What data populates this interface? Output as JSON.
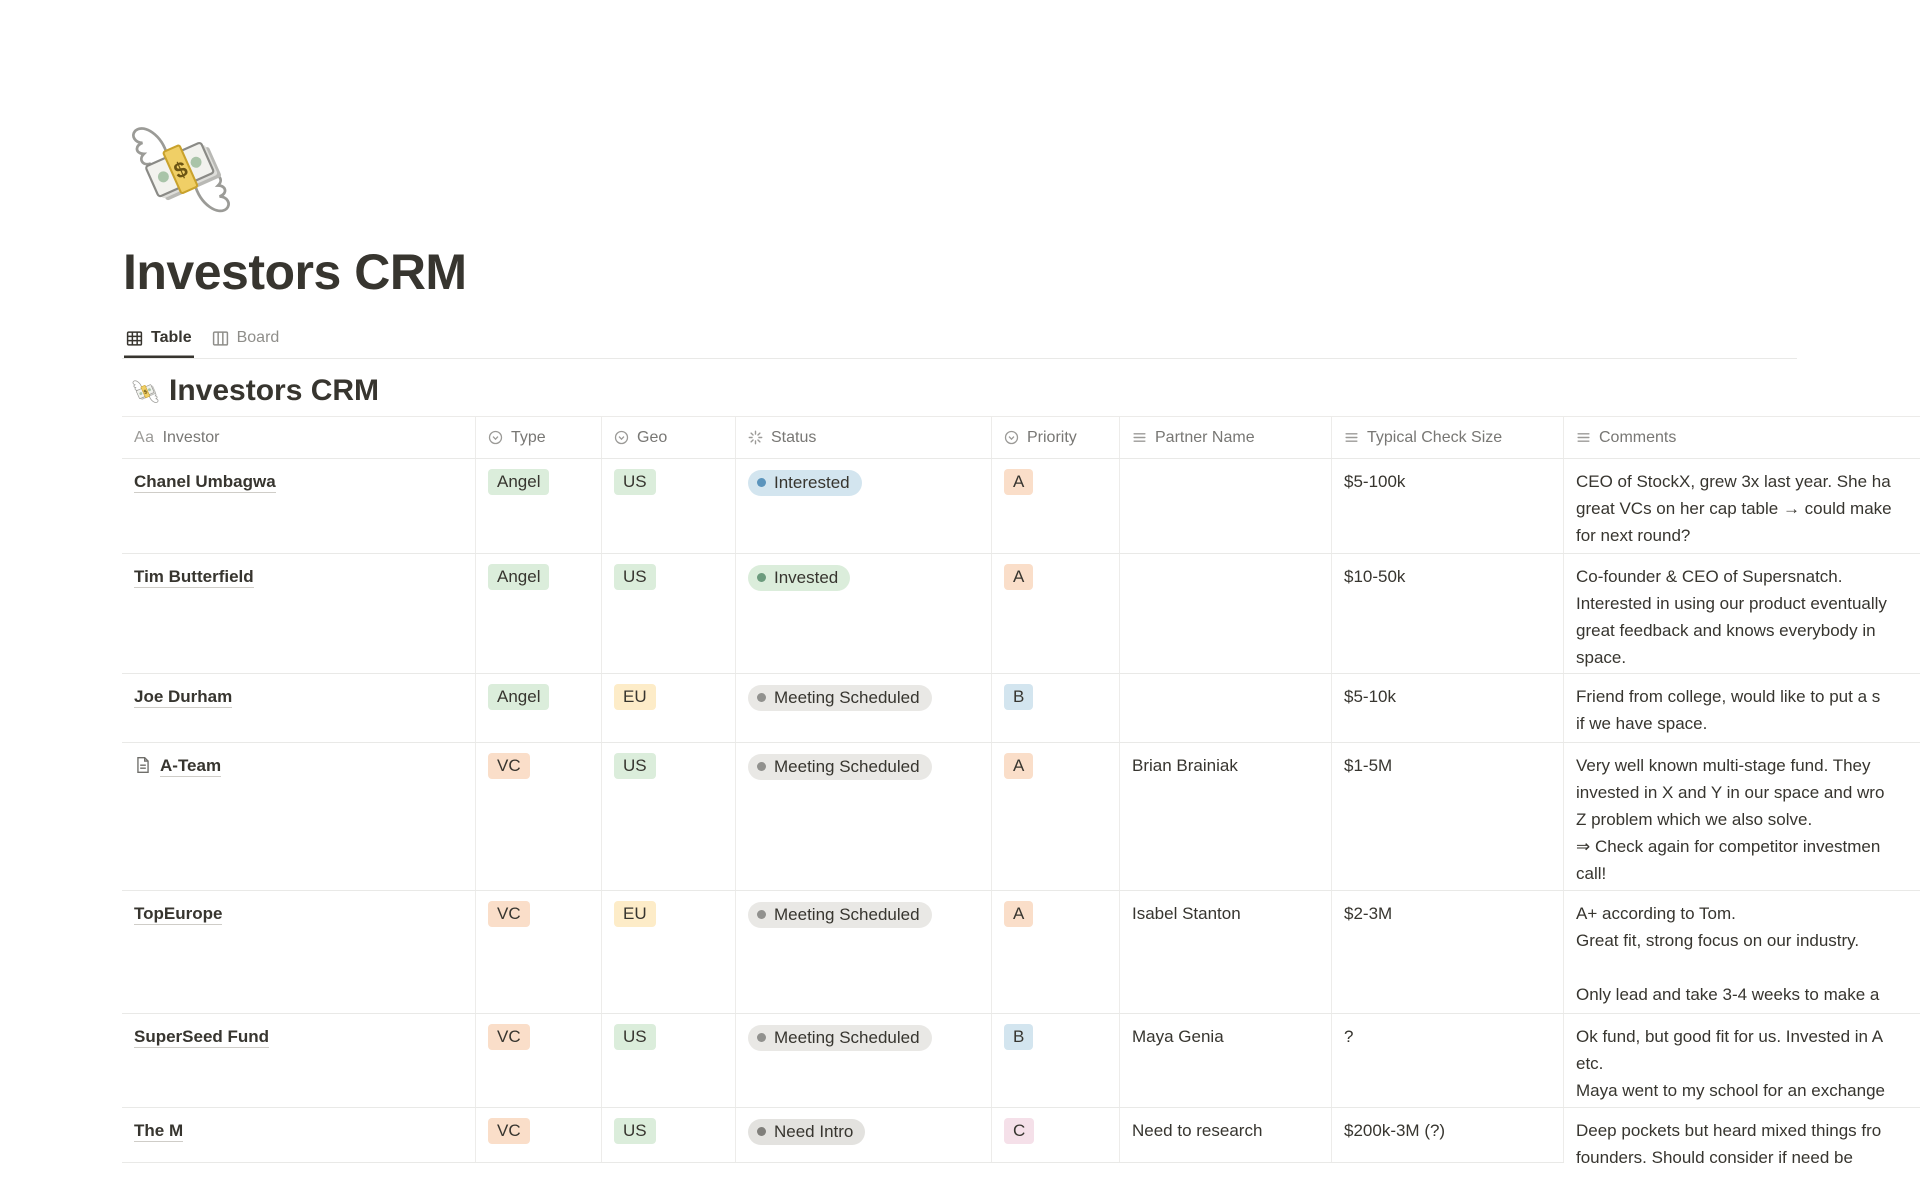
{
  "page": {
    "icon": "money-with-wings-emoji",
    "title": "Investors CRM"
  },
  "tabs": {
    "table_label": "Table",
    "board_label": "Board"
  },
  "view": {
    "icon": "money-with-wings-emoji",
    "heading": "Investors CRM"
  },
  "columns": {
    "investor_icon": "Aa",
    "investor": "Investor",
    "type": "Type",
    "geo": "Geo",
    "status": "Status",
    "priority": "Priority",
    "partner": "Partner Name",
    "check": "Typical Check Size",
    "comments": "Comments"
  },
  "rows": [
    {
      "investor": "Chanel Umbagwa",
      "page_icon": false,
      "type": {
        "label": "Angel",
        "color": "green"
      },
      "geo": {
        "label": "US",
        "color": "green"
      },
      "status": {
        "label": "Interested",
        "color": "blue"
      },
      "priority": {
        "label": "A",
        "color": "orange"
      },
      "partner": "",
      "check": "$5-100k",
      "comments": "CEO of StockX, grew 3x last year. She ha\ngreat VCs on her cap table → could make\nfor next round?"
    },
    {
      "investor": "Tim Butterfield",
      "page_icon": false,
      "type": {
        "label": "Angel",
        "color": "green"
      },
      "geo": {
        "label": "US",
        "color": "green"
      },
      "status": {
        "label": "Invested",
        "color": "green"
      },
      "priority": {
        "label": "A",
        "color": "orange"
      },
      "partner": "",
      "check": "$10-50k",
      "comments": "Co-founder & CEO of Supersnatch.\nInterested in using our product eventually\ngreat feedback and knows everybody in\nspace."
    },
    {
      "investor": "Joe Durham",
      "page_icon": false,
      "type": {
        "label": "Angel",
        "color": "green"
      },
      "geo": {
        "label": "EU",
        "color": "yellow"
      },
      "status": {
        "label": "Meeting Scheduled",
        "color": "gray"
      },
      "priority": {
        "label": "B",
        "color": "blue"
      },
      "partner": "",
      "check": "$5-10k",
      "comments": "Friend from college, would like to put a s\nif we have space."
    },
    {
      "investor": "A-Team",
      "page_icon": true,
      "type": {
        "label": "VC",
        "color": "orange"
      },
      "geo": {
        "label": "US",
        "color": "green"
      },
      "status": {
        "label": "Meeting Scheduled",
        "color": "gray"
      },
      "priority": {
        "label": "A",
        "color": "orange"
      },
      "partner": "Brian Brainiak",
      "check": "$1-5M",
      "comments": "Very well known multi-stage fund. They\ninvested in X and Y in our space and wro\nZ problem which we also solve.\n⇒ Check again for competitor investmen\ncall!"
    },
    {
      "investor": "TopEurope",
      "page_icon": false,
      "type": {
        "label": "VC",
        "color": "orange"
      },
      "geo": {
        "label": "EU",
        "color": "yellow"
      },
      "status": {
        "label": "Meeting Scheduled",
        "color": "gray"
      },
      "priority": {
        "label": "A",
        "color": "orange"
      },
      "partner": "Isabel Stanton",
      "check": "$2-3M",
      "comments": "A+ according to Tom.\nGreat fit, strong focus on our industry.\n\nOnly lead and take 3-4 weeks to make a"
    },
    {
      "investor": "SuperSeed Fund",
      "page_icon": false,
      "type": {
        "label": "VC",
        "color": "orange"
      },
      "geo": {
        "label": "US",
        "color": "green"
      },
      "status": {
        "label": "Meeting Scheduled",
        "color": "gray"
      },
      "priority": {
        "label": "B",
        "color": "blue"
      },
      "partner": "Maya Genia",
      "check": "?",
      "comments": "Ok fund, but good fit for us. Invested in A\netc.\nMaya went to my school for an exchange"
    },
    {
      "investor": "The M",
      "page_icon": false,
      "type": {
        "label": "VC",
        "color": "orange"
      },
      "geo": {
        "label": "US",
        "color": "green"
      },
      "status": {
        "label": "Need Intro",
        "color": "gray-dark"
      },
      "priority": {
        "label": "C",
        "color": "pink"
      },
      "partner": "Need to research",
      "check": "$200k-3M (?)",
      "comments": "Deep pockets but heard mixed things fro\nfounders. Should consider if need be"
    }
  ],
  "colors": {
    "text": "#37352F",
    "muted_text": "#787774",
    "inactive_tab": "#8F8E8A",
    "border": "#E9E9E7",
    "tag_green": "#DBEDDB",
    "tag_orange": "#FADEC9",
    "tag_yellow": "#FDECC8",
    "tag_blue": "#D3E5EF",
    "tag_pink": "#F5E0E9",
    "pill_gray": "#E9E8E5",
    "dot_blue": "#5B94BC",
    "dot_green": "#6C9B7D",
    "dot_gray": "#91918E",
    "dot_gray_dark": "#807F7B"
  }
}
